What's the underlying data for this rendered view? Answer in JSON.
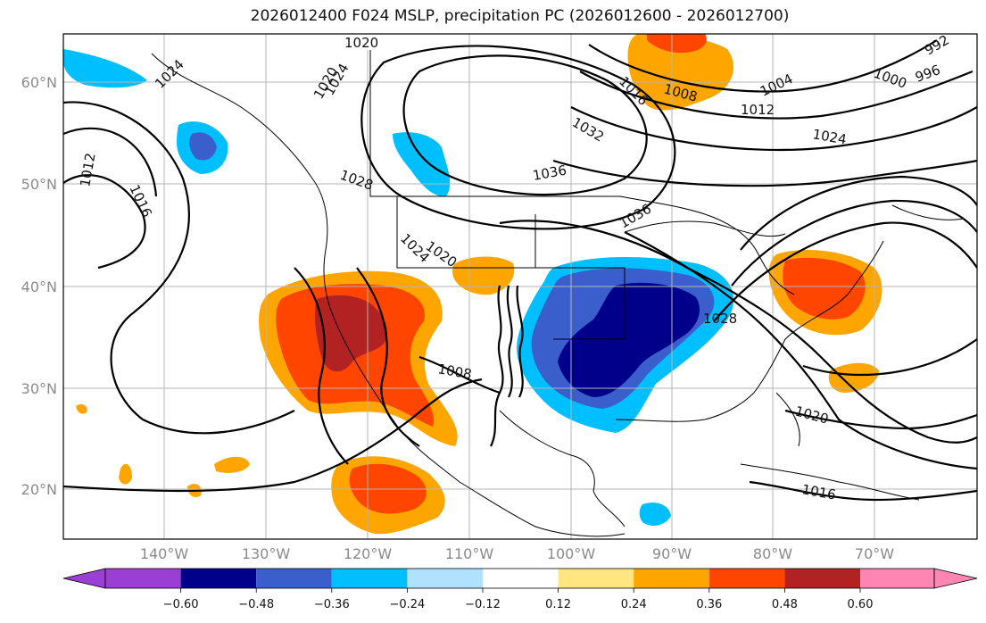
{
  "title": "2026012400 F024 MSLP, precipitation PC (2026012600 - 2026012700)",
  "map": {
    "lat_labels": [
      "60°N",
      "50°N",
      "40°N",
      "30°N",
      "20°N"
    ],
    "lon_labels": [
      "140°W",
      "130°W",
      "120°W",
      "110°W",
      "100°W",
      "90°W",
      "80°W",
      "70°W"
    ],
    "isobar_labels": [
      "1020",
      "1024",
      "1020",
      "1012",
      "1016",
      "1028",
      "1024",
      "1036",
      "1032",
      "1016",
      "1008",
      "1012",
      "1004",
      "1000",
      "996",
      "992",
      "1024",
      "1036",
      "1028",
      "1008",
      "1020",
      "1016",
      "1020",
      "1024"
    ]
  },
  "colorbar": {
    "ticks": [
      "−0.60",
      "−0.48",
      "−0.36",
      "−0.24",
      "−0.12",
      "0.12",
      "0.24",
      "0.36",
      "0.48",
      "0.60"
    ],
    "colors": [
      "#9b3fd4",
      "#00008b",
      "#3a5fcd",
      "#00bfff",
      "#b0e2ff",
      "#ffffff",
      "#ffe680",
      "#ffa500",
      "#ff4500",
      "#b22222",
      "#ff85b3"
    ]
  },
  "colors": {
    "pos_weak": "#ffa500",
    "pos_mid": "#ff4500",
    "pos_strong": "#b22222",
    "neg_weak": "#00bfff",
    "neg_mid": "#3a5fcd",
    "neg_strong": "#00008b",
    "grid": "#b5b5b5"
  }
}
